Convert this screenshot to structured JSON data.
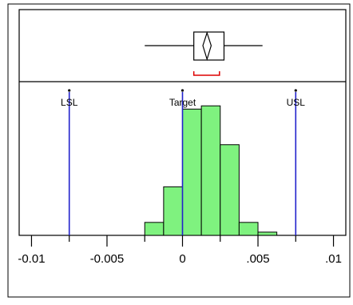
{
  "chart_data": {
    "type": "histogram",
    "title": "",
    "xlabel": "",
    "ylabel": "",
    "xlim": [
      -0.0105,
      0.0105
    ],
    "x_ticks": [
      {
        "value": -0.01,
        "label": "-0.01"
      },
      {
        "value": -0.005,
        "label": "-0.005"
      },
      {
        "value": 0,
        "label": "0"
      },
      {
        "value": 0.005,
        "label": ".005"
      },
      {
        "value": 0.01,
        "label": ".01"
      }
    ],
    "minor_ticks": [
      -0.0075,
      -0.0025,
      0.0025,
      0.0075
    ],
    "bins": [
      {
        "x0": -0.0025,
        "x1": -0.00125,
        "count": 4
      },
      {
        "x0": -0.00125,
        "x1": 0.0,
        "count": 15
      },
      {
        "x0": 0.0,
        "x1": 0.00125,
        "count": 39
      },
      {
        "x0": 0.00125,
        "x1": 0.0025,
        "count": 40
      },
      {
        "x0": 0.0025,
        "x1": 0.00375,
        "count": 28
      },
      {
        "x0": 0.00375,
        "x1": 0.005,
        "count": 4
      },
      {
        "x0": 0.005,
        "x1": 0.00625,
        "count": 1
      }
    ],
    "ylim": [
      0,
      45
    ],
    "spec_limits": [
      {
        "name": "LSL",
        "value": -0.0075
      },
      {
        "name": "Target",
        "value": 0.0
      },
      {
        "name": "USL",
        "value": 0.0075
      }
    ],
    "box_plot": {
      "whisker_low": -0.0025,
      "q1": 0.00075,
      "q3": 0.00275,
      "whisker_high": 0.0053,
      "mean_diamond_left": 0.00135,
      "mean_diamond_right": 0.0019,
      "shortest_half_low": 0.00075,
      "shortest_half_high": 0.00245
    },
    "colors": {
      "bar_fill": "#7ff27f",
      "bar_stroke": "#000000",
      "spec_line": "#2222cc",
      "shortest_half": "#dd0000",
      "frame": "#000000"
    },
    "grid": false,
    "legend": "none"
  }
}
